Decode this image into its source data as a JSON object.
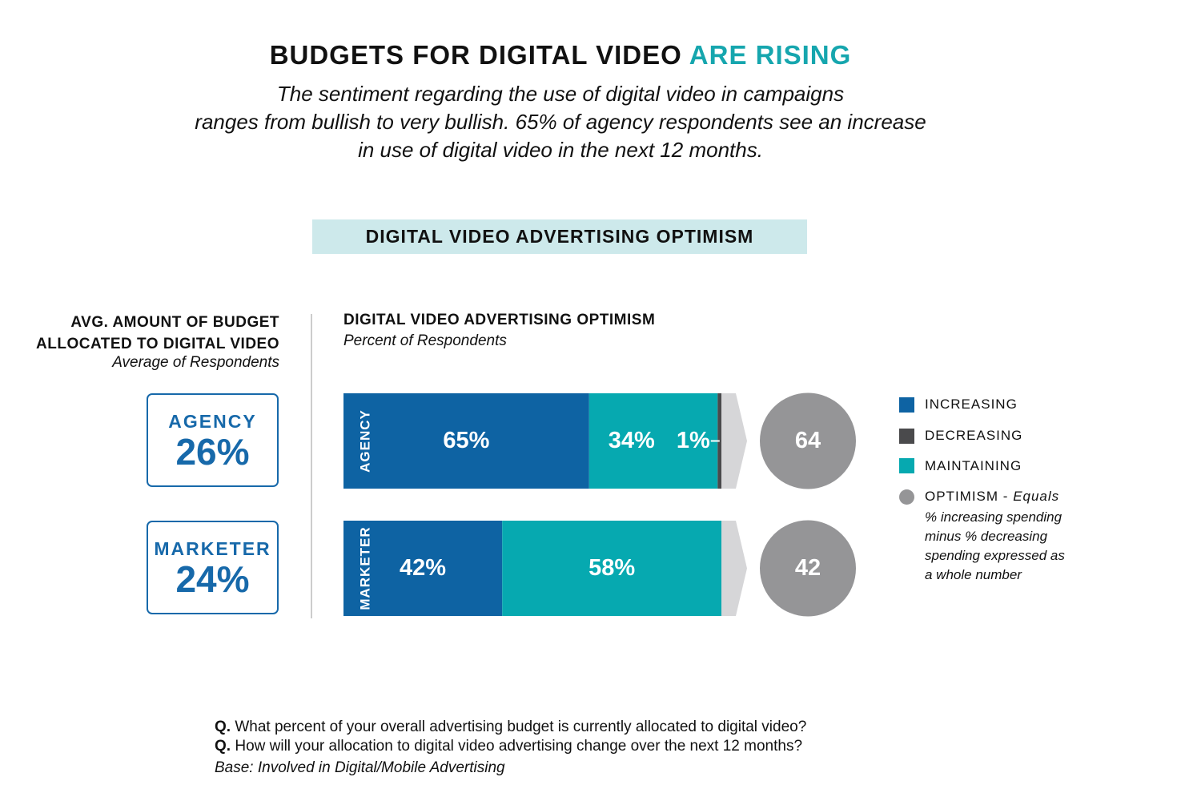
{
  "headline": {
    "part1": "BUDGETS FOR DIGITAL VIDEO",
    "part2": "ARE RISING"
  },
  "subtitle": {
    "line1": "The sentiment regarding the use of digital video in campaigns",
    "line2": "ranges from bullish to very bullish. 65% of agency respondents see an increase",
    "line3": "in use of digital video in the next 12 months."
  },
  "banner": "DIGITAL VIDEO ADVERTISING OPTIMISM",
  "left_panel": {
    "title_line1": "AVG. AMOUNT OF BUDGET",
    "title_line2": "ALLOCATED TO DIGITAL VIDEO",
    "subtitle": "Average of Respondents",
    "boxes": [
      {
        "label": "AGENCY",
        "value": "26%"
      },
      {
        "label": "MARKETER",
        "value": "24%"
      }
    ]
  },
  "right_panel": {
    "title": "DIGITAL VIDEO ADVERTISING OPTIMISM",
    "subtitle": "Percent of Respondents"
  },
  "legend": {
    "increasing": "INCREASING",
    "decreasing": "DECREASING",
    "maintaining": "MAINTAINING",
    "optimism": "OPTIMISM -",
    "optimism_note_lead": "Equals",
    "optimism_note_1": "% increasing spending",
    "optimism_note_2": "minus % decreasing",
    "optimism_note_3": "spending expressed as",
    "optimism_note_4": "a whole number"
  },
  "footnotes": {
    "q_marker": "Q.",
    "q1": "What percent of your overall advertising budget is currently allocated to digital video?",
    "q2": "How will your allocation to digital video advertising change over the next 12 months?",
    "base": "Base: Involved in Digital/Mobile Advertising"
  },
  "colors": {
    "increasing": "#0e63a3",
    "decreasing": "#4a4a4c",
    "maintaining": "#06a9b0",
    "optimism": "#959597",
    "arrow": "#d6d6d8",
    "accent": "#16a6ae"
  },
  "chart_data": {
    "type": "bar",
    "orientation": "horizontal-stacked",
    "title": "DIGITAL VIDEO ADVERTISING OPTIMISM",
    "subtitle": "Percent of Respondents",
    "categories": [
      "AGENCY",
      "MARKETER"
    ],
    "series": [
      {
        "name": "INCREASING",
        "values": [
          65,
          42
        ],
        "labels": [
          "65%",
          "42%"
        ]
      },
      {
        "name": "MAINTAINING",
        "values": [
          34,
          58
        ],
        "labels": [
          "34%",
          "58%"
        ]
      },
      {
        "name": "DECREASING",
        "values": [
          1,
          0
        ],
        "labels": [
          "1%",
          ""
        ]
      }
    ],
    "optimism": {
      "values": [
        64,
        42
      ],
      "labels": [
        "64",
        "42"
      ]
    },
    "xlim": [
      0,
      100
    ]
  }
}
